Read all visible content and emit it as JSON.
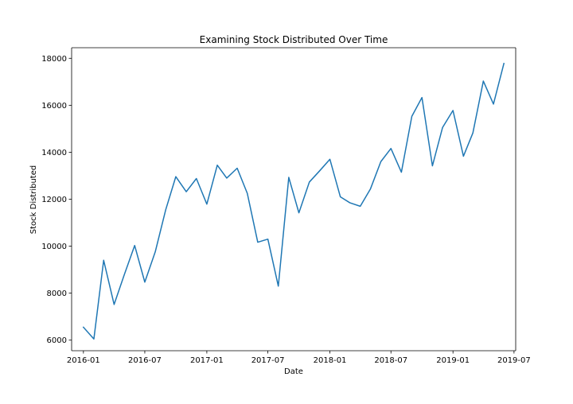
{
  "chart_data": {
    "type": "line",
    "title": "Examining Stock Distributed Over Time",
    "xlabel": "Date",
    "ylabel": "Stock Distributed",
    "x_ticks": [
      "2016-01",
      "2016-07",
      "2017-01",
      "2017-07",
      "2018-01",
      "2018-07",
      "2019-01",
      "2019-07"
    ],
    "y_ticks": [
      6000,
      8000,
      10000,
      12000,
      14000,
      16000,
      18000
    ],
    "ylim": [
      5550,
      18450
    ],
    "xlim": [
      "2015-11-27",
      "2019-07-06"
    ],
    "grid": false,
    "line_color": "#1f77b4",
    "series": [
      {
        "x": [
          "2016-01",
          "2016-02",
          "2016-03",
          "2016-04",
          "2016-05",
          "2016-06",
          "2016-07",
          "2016-08",
          "2016-09",
          "2016-10",
          "2016-11",
          "2016-12",
          "2017-01",
          "2017-02",
          "2017-03",
          "2017-04",
          "2017-05",
          "2017-06",
          "2017-07",
          "2017-08",
          "2017-09",
          "2017-10",
          "2017-11",
          "2017-12",
          "2018-01",
          "2018-02",
          "2018-03",
          "2018-04",
          "2018-05",
          "2018-06",
          "2018-07",
          "2018-08",
          "2018-09",
          "2018-10",
          "2018-11",
          "2018-12",
          "2019-01",
          "2019-02",
          "2019-03",
          "2019-04",
          "2019-05",
          "2019-06"
        ],
        "y": [
          6550,
          6050,
          9400,
          7520,
          8780,
          10030,
          8470,
          9760,
          11550,
          12960,
          12320,
          12880,
          11790,
          13450,
          12900,
          13320,
          12250,
          10170,
          10300,
          8300,
          12930,
          11420,
          12730,
          13200,
          13700,
          12100,
          11850,
          11700,
          12430,
          13600,
          14160,
          13150,
          15530,
          16330,
          13420,
          15050,
          15780,
          13830,
          14820,
          17030,
          16050,
          17780
        ]
      }
    ]
  }
}
